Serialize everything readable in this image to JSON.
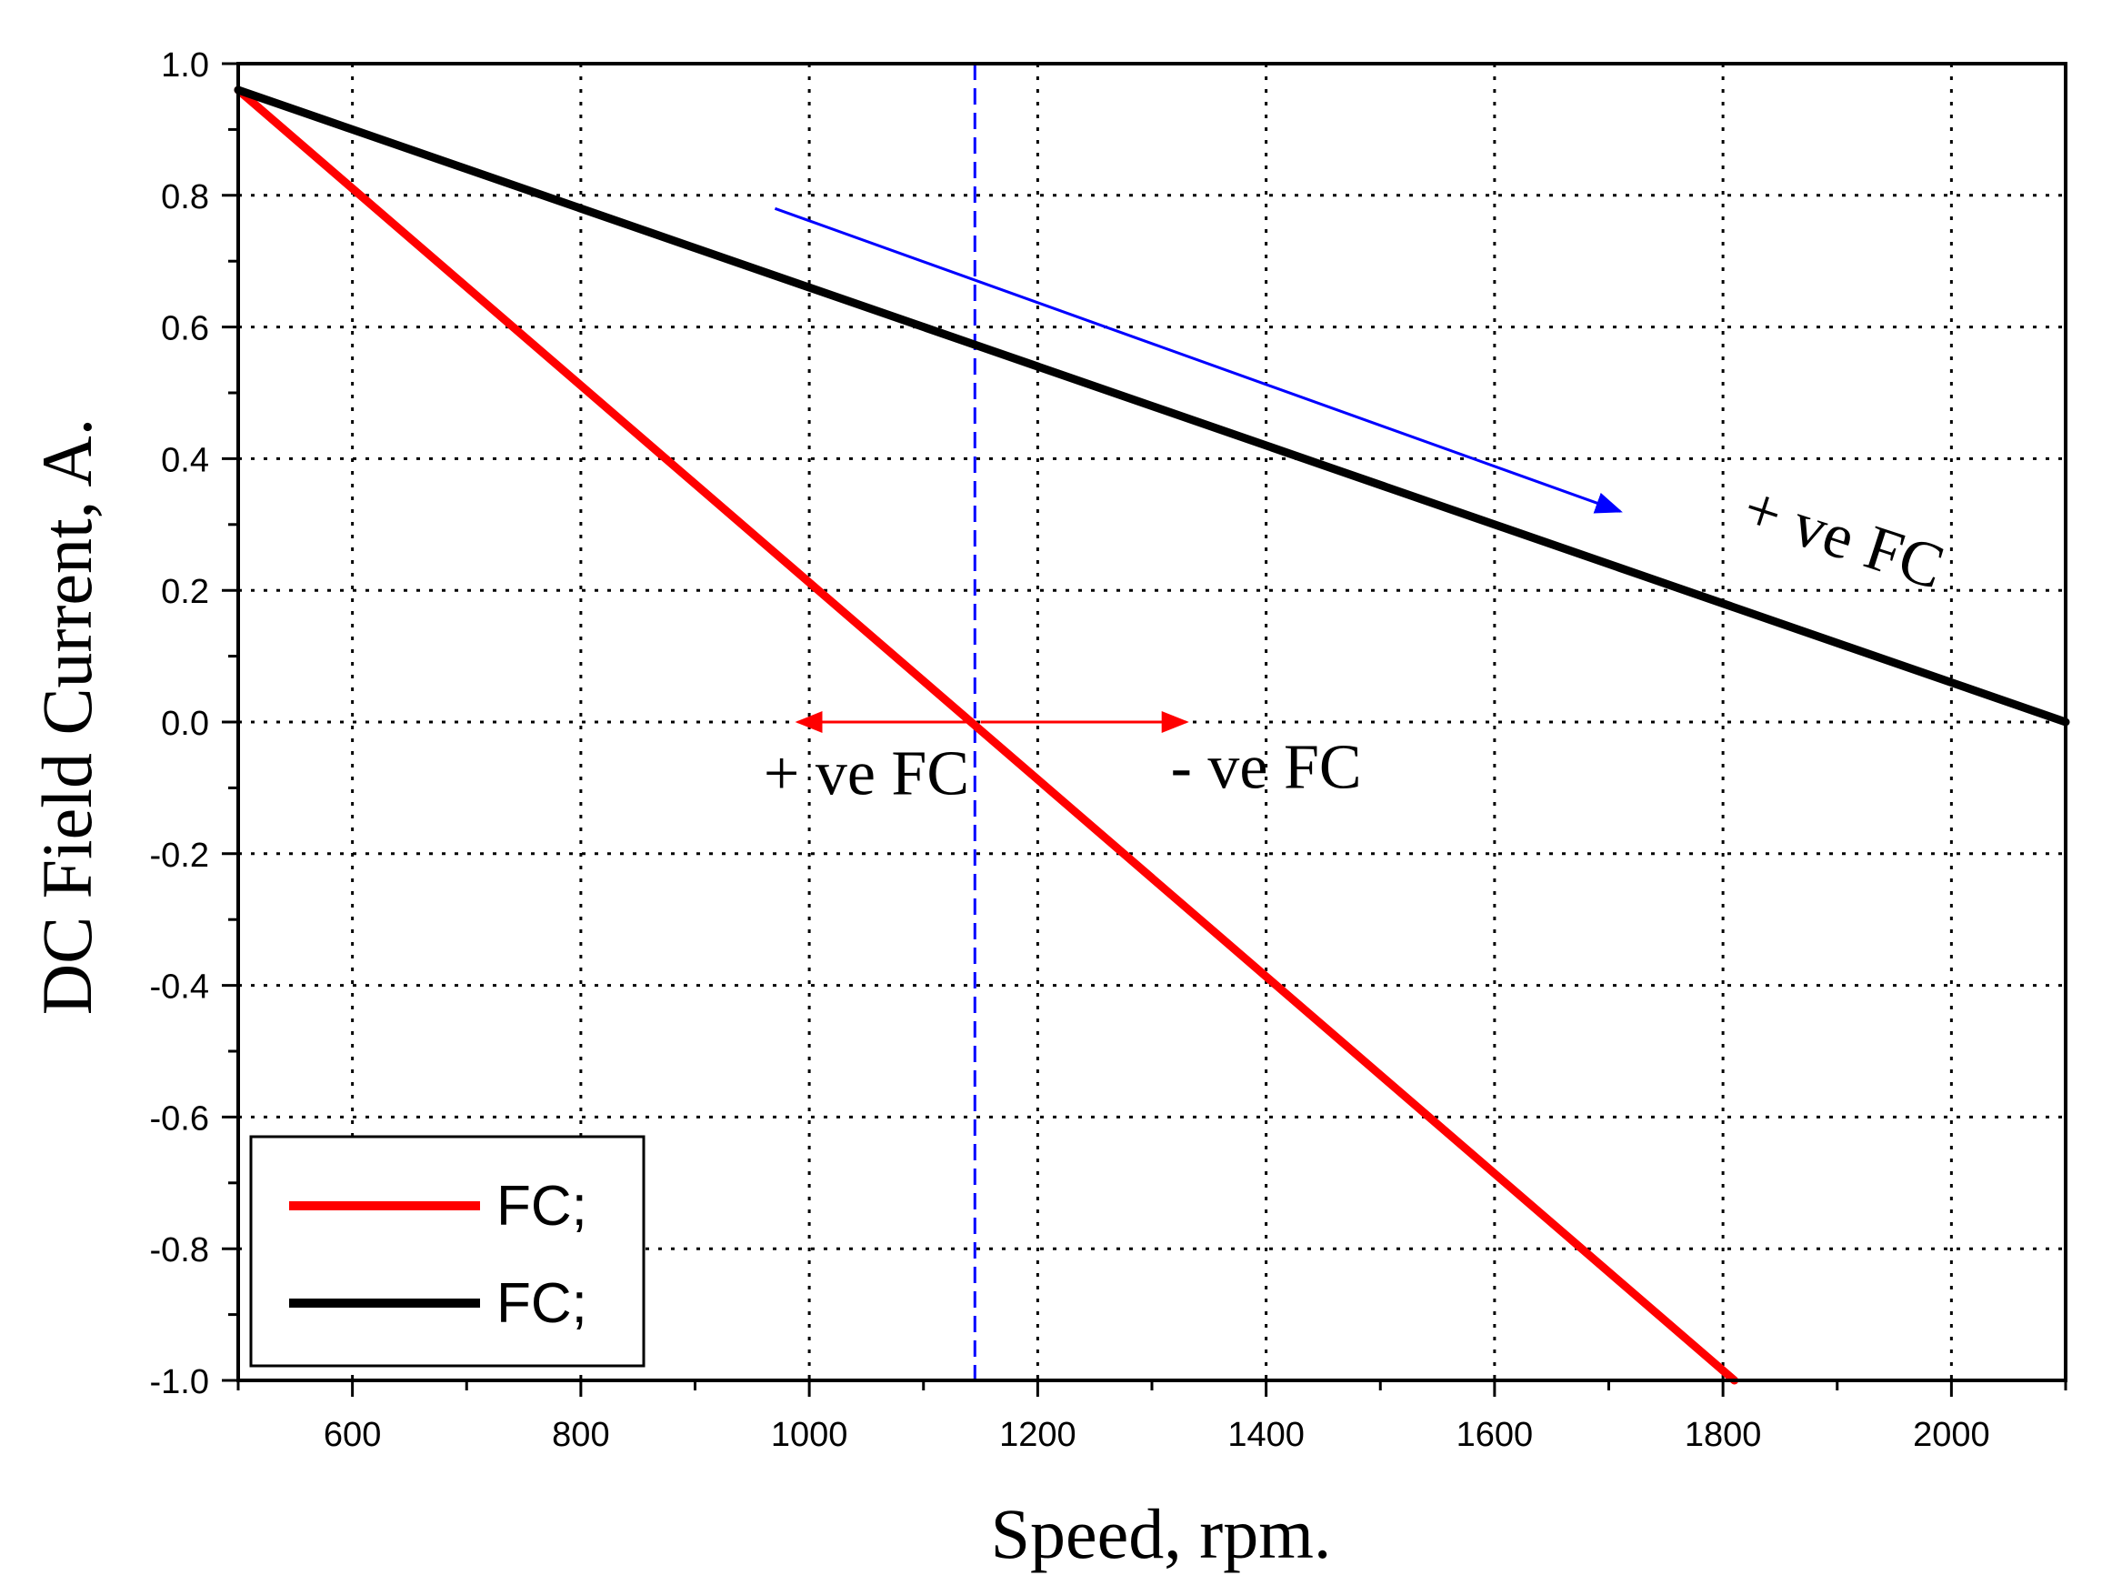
{
  "chart_data": {
    "type": "line",
    "title": "",
    "xlabel": "Speed, rpm.",
    "ylabel": "DC Field Current, A.",
    "xlim": [
      500,
      2100
    ],
    "ylim": [
      -1.0,
      1.0
    ],
    "grid": true,
    "x_ticks": [
      600,
      800,
      1000,
      1200,
      1400,
      1600,
      1800,
      2000
    ],
    "x_tick_labels": [
      "600",
      "800",
      "1000",
      "1200",
      "1400",
      "1600",
      "1800",
      "2000"
    ],
    "y_ticks": [
      1.0,
      0.8,
      0.6,
      0.4,
      0.2,
      0.0,
      -0.2,
      -0.4,
      -0.6,
      -0.8,
      -1.0
    ],
    "y_tick_labels": [
      "1.0",
      "0.8",
      "0.6",
      "0.4",
      "0.2",
      "0.0",
      "-0.2",
      "-0.4",
      "-0.6",
      "-0.8",
      "-1.0"
    ],
    "series": [
      {
        "name": "FC;",
        "color": "#ff0000",
        "x": [
          500,
          1810
        ],
        "y": [
          0.96,
          -1.0
        ]
      },
      {
        "name": "FC;",
        "color": "#000000",
        "x": [
          500,
          2100
        ],
        "y": [
          0.96,
          0.0
        ]
      }
    ],
    "reference_line": {
      "x": 1145,
      "color": "#0000ff",
      "style": "dashed"
    },
    "annotations": [
      {
        "text": "+ ve FC",
        "x": 1050,
        "y": -0.11,
        "color": "#000000"
      },
      {
        "text": "- ve FC",
        "x": 1400,
        "y": -0.1,
        "color": "#000000"
      },
      {
        "text": "+ ve FC",
        "x": 1900,
        "y": 0.25,
        "color": "#000000",
        "rotation": 18
      }
    ],
    "arrows": [
      {
        "from": [
          1140,
          0.0
        ],
        "to": [
          990,
          0.0
        ],
        "color": "#ff0000"
      },
      {
        "from": [
          1150,
          0.0
        ],
        "to": [
          1330,
          0.0
        ],
        "color": "#ff0000"
      },
      {
        "from": [
          970,
          0.78
        ],
        "to": [
          1710,
          0.32
        ],
        "color": "#0000ff"
      }
    ],
    "legend": {
      "position": "bottom-left"
    }
  }
}
